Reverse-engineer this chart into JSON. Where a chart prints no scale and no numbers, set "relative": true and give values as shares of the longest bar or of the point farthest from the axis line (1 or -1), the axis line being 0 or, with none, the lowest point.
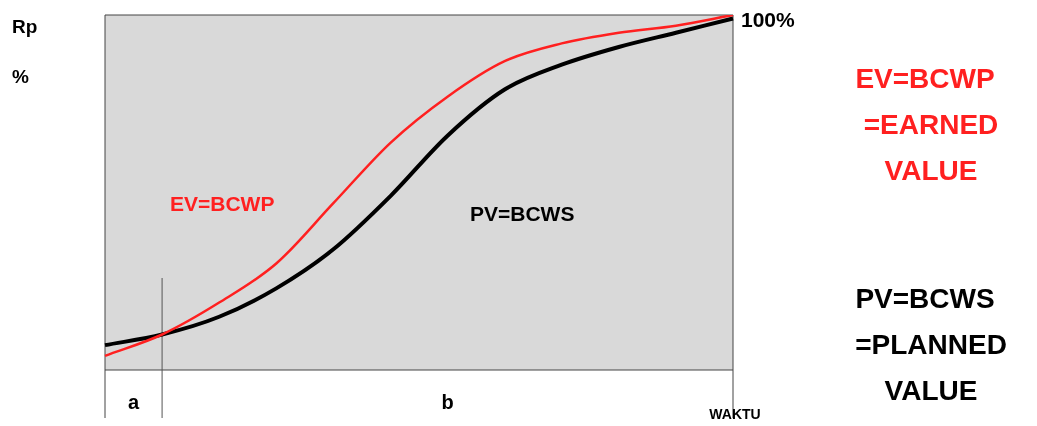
{
  "chart_data": {
    "type": "line",
    "relative": true,
    "xlabel": "WAKTU",
    "ylabel": "Rp %",
    "categories": [
      null,
      null,
      null,
      null,
      null,
      null,
      null,
      null,
      null,
      null,
      null,
      null
    ],
    "series": [
      {
        "name": "EV=BCWP",
        "color": "#ff2020",
        "values": [
          0.04,
          0.1,
          0.19,
          0.3,
          0.47,
          0.64,
          0.77,
          0.87,
          0.92,
          0.95,
          0.97,
          1.0
        ]
      },
      {
        "name": "PV=BCWS",
        "color": "#000000",
        "values": [
          0.07,
          0.1,
          0.15,
          0.23,
          0.34,
          0.49,
          0.66,
          0.79,
          0.86,
          0.91,
          0.95,
          0.99
        ]
      }
    ],
    "annotations": [
      "100%",
      "EV=BCWP =EARNED VALUE",
      "PV=BCWS =PLANNED VALUE",
      "a",
      "b"
    ],
    "marker": "none",
    "line_style": "solid",
    "legend": false
  }
}
